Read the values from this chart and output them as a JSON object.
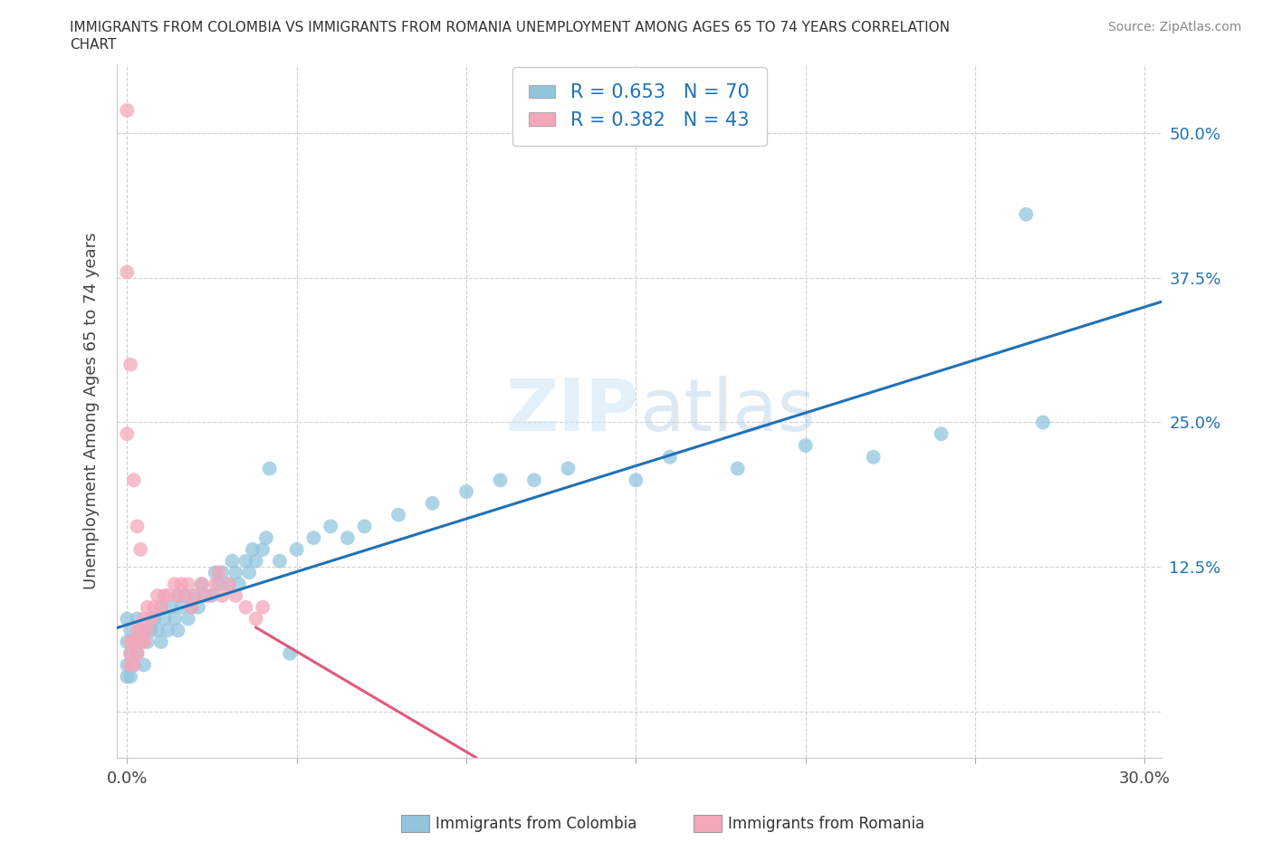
{
  "title_line1": "IMMIGRANTS FROM COLOMBIA VS IMMIGRANTS FROM ROMANIA UNEMPLOYMENT AMONG AGES 65 TO 74 YEARS CORRELATION",
  "title_line2": "CHART",
  "source": "Source: ZipAtlas.com",
  "ylabel": "Unemployment Among Ages 65 to 74 years",
  "xlim": [
    -0.003,
    0.305
  ],
  "ylim": [
    -0.04,
    0.56
  ],
  "ytick_positions": [
    0.0,
    0.125,
    0.25,
    0.375,
    0.5
  ],
  "ytick_labels": [
    "",
    "12.5%",
    "25.0%",
    "37.5%",
    "50.0%"
  ],
  "xtick_positions": [
    0.0,
    0.05,
    0.1,
    0.15,
    0.2,
    0.25,
    0.3
  ],
  "xtick_labels": [
    "0.0%",
    "",
    "",
    "",
    "",
    "",
    "30.0%"
  ],
  "colombia_color": "#92C5DE",
  "romania_color": "#F4A7B9",
  "colombia_line_color": "#2171B5",
  "romania_line_color": "#E05A7A",
  "colombia_R": 0.653,
  "colombia_N": 70,
  "romania_R": 0.382,
  "romania_N": 43,
  "legend_R_color": "#2171B5",
  "legend_N_color": "#E05A7A",
  "watermark_zip": "ZIP",
  "watermark_atlas": "atlas",
  "bottom_label_colombia": "Immigrants from Colombia",
  "bottom_label_romania": "Immigrants from Romania",
  "colombia_x": [
    0.0,
    0.0,
    0.0,
    0.0,
    0.001,
    0.001,
    0.001,
    0.002,
    0.002,
    0.003,
    0.003,
    0.004,
    0.005,
    0.005,
    0.006,
    0.007,
    0.008,
    0.009,
    0.01,
    0.01,
    0.011,
    0.012,
    0.013,
    0.014,
    0.015,
    0.015,
    0.016,
    0.017,
    0.018,
    0.019,
    0.02,
    0.021,
    0.022,
    0.023,
    0.025,
    0.026,
    0.027,
    0.028,
    0.03,
    0.031,
    0.032,
    0.033,
    0.035,
    0.036,
    0.037,
    0.038,
    0.04,
    0.041,
    0.042,
    0.045,
    0.048,
    0.05,
    0.055,
    0.06,
    0.065,
    0.07,
    0.08,
    0.09,
    0.1,
    0.11,
    0.12,
    0.13,
    0.15,
    0.16,
    0.18,
    0.2,
    0.22,
    0.24,
    0.265,
    0.27
  ],
  "colombia_y": [
    0.03,
    0.04,
    0.06,
    0.08,
    0.03,
    0.05,
    0.07,
    0.04,
    0.06,
    0.05,
    0.08,
    0.06,
    0.04,
    0.07,
    0.06,
    0.07,
    0.08,
    0.07,
    0.06,
    0.09,
    0.08,
    0.07,
    0.09,
    0.08,
    0.07,
    0.1,
    0.09,
    0.1,
    0.08,
    0.09,
    0.1,
    0.09,
    0.11,
    0.1,
    0.1,
    0.12,
    0.11,
    0.12,
    0.11,
    0.13,
    0.12,
    0.11,
    0.13,
    0.12,
    0.14,
    0.13,
    0.14,
    0.15,
    0.21,
    0.13,
    0.05,
    0.14,
    0.15,
    0.16,
    0.15,
    0.16,
    0.17,
    0.18,
    0.19,
    0.2,
    0.2,
    0.21,
    0.2,
    0.22,
    0.21,
    0.23,
    0.22,
    0.24,
    0.43,
    0.25
  ],
  "romania_x": [
    0.001,
    0.001,
    0.001,
    0.002,
    0.002,
    0.003,
    0.003,
    0.004,
    0.004,
    0.005,
    0.005,
    0.006,
    0.006,
    0.007,
    0.008,
    0.009,
    0.01,
    0.011,
    0.012,
    0.014,
    0.015,
    0.016,
    0.017,
    0.018,
    0.019,
    0.02,
    0.022,
    0.024,
    0.026,
    0.027,
    0.028,
    0.03,
    0.032,
    0.035,
    0.038,
    0.04,
    0.0,
    0.0,
    0.0,
    0.001,
    0.002,
    0.003,
    0.004
  ],
  "romania_y": [
    0.04,
    0.05,
    0.06,
    0.04,
    0.06,
    0.05,
    0.07,
    0.06,
    0.07,
    0.06,
    0.08,
    0.07,
    0.09,
    0.08,
    0.09,
    0.1,
    0.09,
    0.1,
    0.1,
    0.11,
    0.1,
    0.11,
    0.1,
    0.11,
    0.09,
    0.1,
    0.11,
    0.1,
    0.11,
    0.12,
    0.1,
    0.11,
    0.1,
    0.09,
    0.08,
    0.09,
    0.52,
    0.38,
    0.24,
    0.3,
    0.2,
    0.16,
    0.14
  ]
}
